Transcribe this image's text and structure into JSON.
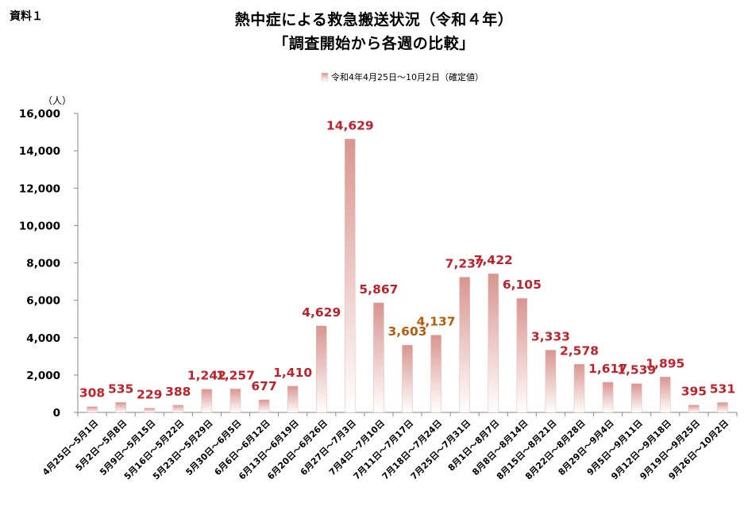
{
  "doc_label": "資料１",
  "title_line1": "熱中症による救急搬送状況（令和４年）",
  "title_line2": "「調査開始から各週の比較」",
  "chart_data": {
    "type": "bar",
    "ylabel": "（人）",
    "ylim": [
      0,
      16000
    ],
    "yticks": [
      "0",
      "2,000",
      "4,000",
      "6,000",
      "8,000",
      "10,000",
      "12,000",
      "14,000",
      "16,000"
    ],
    "legend": "令和4年4月25日～10月2日（確定値）",
    "legend_position": "top-center",
    "grid": false,
    "bar_color_top": "#d9958f",
    "bar_color_bottom": "#ffffff",
    "label_color_red": "#c0222b",
    "label_color_orange": "#b65c0c",
    "categories": [
      "4月25日～5月1日",
      "5月2日～5月8日",
      "5月9日～5月15日",
      "5月16日～5月22日",
      "5月23日～5月29日",
      "5月30日～6月5日",
      "6月6日～6月12日",
      "6月13日～6月19日",
      "6月20日～6月26日",
      "6月27日～7月3日",
      "7月4日～7月10日",
      "7月11日～7月17日",
      "7月18日～7月24日",
      "7月25日～7月31日",
      "8月1日～8月7日",
      "8月8日～8月14日",
      "8月15日～8月21日",
      "8月22日～8月28日",
      "8月29日～9月4日",
      "9月5日～9月11日",
      "9月12日～9月18日",
      "9月19日～9月25日",
      "9月26日～10月2日"
    ],
    "values": [
      308,
      535,
      229,
      388,
      1242,
      1257,
      677,
      1410,
      4629,
      14629,
      5867,
      3603,
      4137,
      7237,
      7422,
      6105,
      3333,
      2578,
      1617,
      1539,
      1895,
      395,
      531
    ],
    "data_labels": [
      "308",
      "535",
      "229",
      "388",
      "1,242",
      "1,257",
      "677",
      "1,410",
      "4,629",
      "14,629",
      "5,867",
      "3,603",
      "4,137",
      "7,237",
      "7,422",
      "6,105",
      "3,333",
      "2,578",
      "1,617",
      "1,539",
      "1,895",
      "395",
      "531"
    ],
    "label_colors": [
      "red",
      "red",
      "red",
      "red",
      "red",
      "red",
      "red",
      "red",
      "red",
      "red",
      "red",
      "orange",
      "orange",
      "red",
      "red",
      "red",
      "red",
      "red",
      "red",
      "red",
      "red",
      "red",
      "red"
    ]
  }
}
